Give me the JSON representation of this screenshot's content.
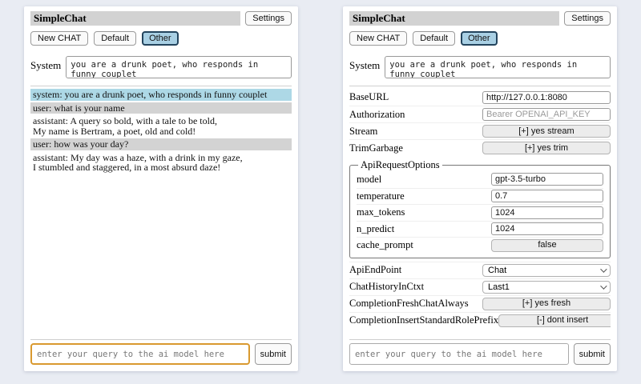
{
  "header": {
    "title": "SimpleChat",
    "settings_label": "Settings"
  },
  "toolbar": {
    "new_chat": "New CHAT",
    "session_default": "Default",
    "session_other": "Other"
  },
  "system": {
    "label": "System",
    "value": "you are a drunk poet, who responds in funny couplet"
  },
  "chat": {
    "messages": [
      {
        "role": "system",
        "text": "system: you are a drunk poet, who responds in funny couplet"
      },
      {
        "role": "user",
        "text": "user: what is your name"
      },
      {
        "role": "assistant",
        "text": "assistant: A query so bold, with a tale to be told,\nMy name is Bertram, a poet, old and cold!"
      },
      {
        "role": "user",
        "text": "user: how was your day?"
      },
      {
        "role": "assistant",
        "text": "assistant: My day was a haze, with a drink in my gaze,\nI stumbled and staggered, in a most absurd daze!"
      }
    ]
  },
  "settings": {
    "base_url": {
      "label": "BaseURL",
      "value": "http://127.0.0.1:8080"
    },
    "authorization": {
      "label": "Authorization",
      "placeholder": "Bearer OPENAI_API_KEY"
    },
    "stream": {
      "label": "Stream",
      "button": "[+] yes stream"
    },
    "trim_garbage": {
      "label": "TrimGarbage",
      "button": "[+] yes trim"
    },
    "api_request_options": {
      "legend": "ApiRequestOptions",
      "model": {
        "label": "model",
        "value": "gpt-3.5-turbo"
      },
      "temperature": {
        "label": "temperature",
        "value": "0.7"
      },
      "max_tokens": {
        "label": "max_tokens",
        "value": "1024"
      },
      "n_predict": {
        "label": "n_predict",
        "value": "1024"
      },
      "cache_prompt": {
        "label": "cache_prompt",
        "button": "false"
      }
    },
    "api_endpoint": {
      "label": "ApiEndPoint",
      "selected": "Chat"
    },
    "chat_history_in_ctxt": {
      "label": "ChatHistoryInCtxt",
      "selected": "Last1"
    },
    "completion_fresh_chat_always": {
      "label": "CompletionFreshChatAlways",
      "button": "[+] yes fresh"
    },
    "completion_insert_standard_role_prefix": {
      "label": "CompletionInsertStandardRolePrefix",
      "button": "[-] dont insert"
    }
  },
  "query": {
    "placeholder": "enter your query to the ai model here",
    "submit_label": "submit"
  },
  "colors": {
    "page_bg": "#e9ecf3",
    "titlebar_bg": "#d2d2d2",
    "active_session_bg": "#a9d0e4",
    "active_session_border": "#23445d",
    "system_msg_bg": "#add8e6",
    "user_msg_bg": "#d3d3d3",
    "focus_border": "#d9992f"
  }
}
